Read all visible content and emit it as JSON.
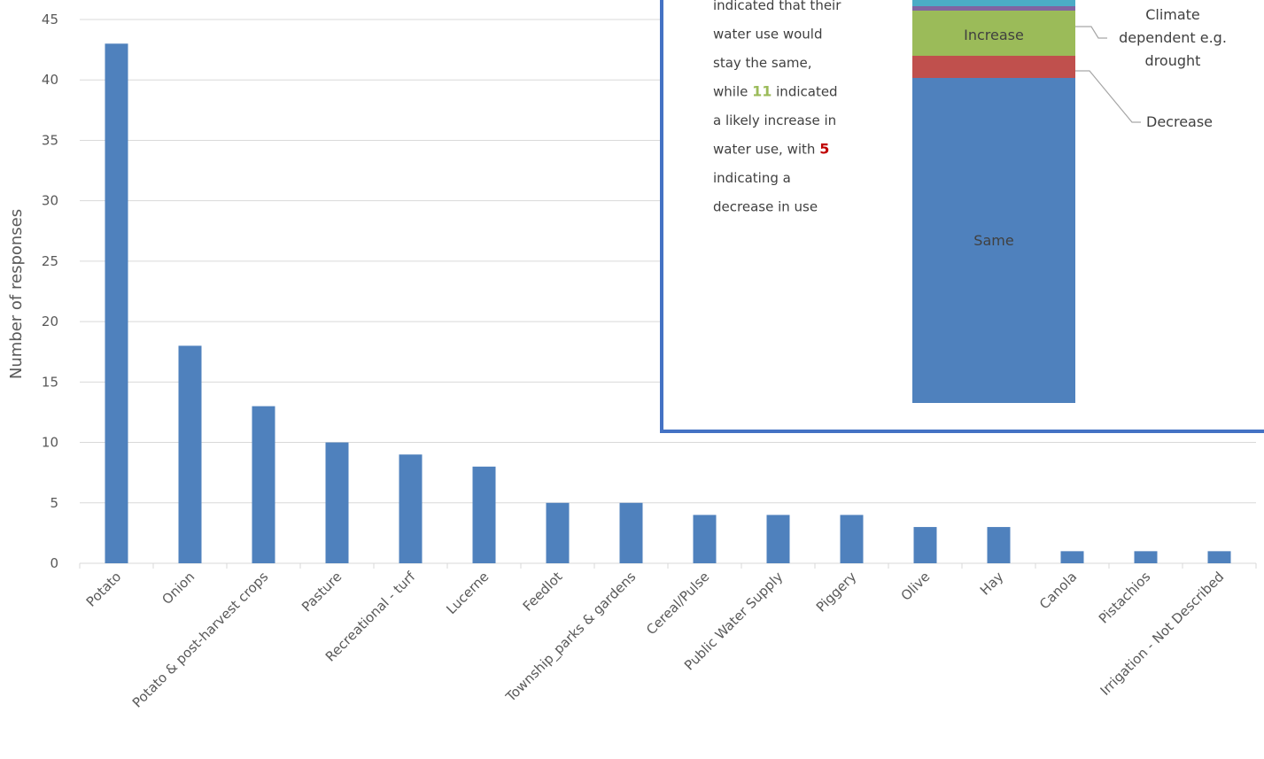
{
  "chart_data": {
    "type": "bar",
    "categories": [
      "Potato",
      "Onion",
      "Potato & post-harvest crops",
      "Pasture",
      "Recreational - turf",
      "Lucerne",
      "Feedlot",
      "Township_parks & gardens",
      "Cereal/Pulse",
      "Public Water Supply",
      "Piggery",
      "Olive",
      "Hay",
      "Canola",
      "Pistachios",
      "Irrigation - Not Described"
    ],
    "values": [
      43,
      18,
      13,
      10,
      9,
      8,
      5,
      5,
      4,
      4,
      4,
      3,
      3,
      1,
      1,
      1
    ],
    "ylabel": "Number of responses",
    "ylim": [
      0,
      45
    ],
    "yticks": [
      0,
      5,
      10,
      15,
      20,
      25,
      30,
      35,
      40,
      45
    ],
    "grid": true,
    "bar_color": "#4F81BD"
  },
  "inset": {
    "text_lines": [
      {
        "parts": [
          {
            "t": "indicated that their"
          }
        ]
      },
      {
        "parts": [
          {
            "t": "water use would"
          }
        ]
      },
      {
        "parts": [
          {
            "t": "stay the same,"
          }
        ]
      },
      {
        "parts": [
          {
            "t": "while "
          },
          {
            "t": "11",
            "color": "#9BBB59",
            "bold": true
          },
          {
            "t": " indicated"
          }
        ]
      },
      {
        "parts": [
          {
            "t": "a likely increase in"
          }
        ]
      },
      {
        "parts": [
          {
            "t": "water use, with "
          },
          {
            "t": "5",
            "color": "#C00000",
            "bold": true
          }
        ]
      },
      {
        "parts": [
          {
            "t": "indicating a"
          }
        ]
      },
      {
        "parts": [
          {
            "t": "decrease in use"
          }
        ]
      }
    ],
    "stacked_segments": [
      {
        "label": "Same",
        "color": "#4F81BD"
      },
      {
        "label": "Decrease",
        "color": "#C0504D"
      },
      {
        "label": "Increase",
        "color": "#9BBB59"
      },
      {
        "label": "",
        "color": "#8064A2"
      },
      {
        "label": "",
        "color": "#4BACC6"
      }
    ],
    "callouts": {
      "climate": [
        "Climate",
        "dependent e.g.",
        "drought"
      ],
      "decrease": "Decrease"
    },
    "border_color": "#4472C4"
  }
}
